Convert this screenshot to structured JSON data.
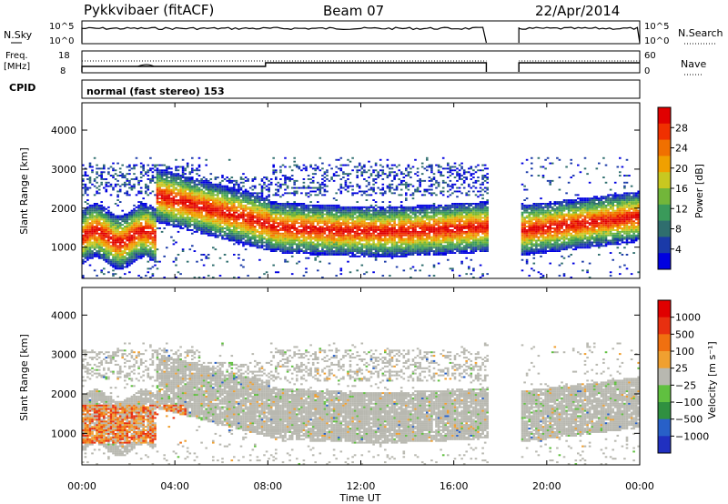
{
  "header": {
    "title": "Pykkvibaer (fitACF)",
    "beam": "Beam 07",
    "date": "22/Apr/2014"
  },
  "strip1": {
    "left_label": "N.Sky",
    "right_label": "N.Search",
    "left_ticks": [
      "10^5",
      "10^0"
    ],
    "right_ticks": [
      "10^5",
      "10^0"
    ]
  },
  "strip2": {
    "left_label_line1": "Freq.",
    "left_label_line2": "[MHz]",
    "right_label": "Nave",
    "left_ticks": [
      "18",
      "8"
    ],
    "right_ticks": [
      "60",
      "0"
    ]
  },
  "cpid": {
    "label": "CPID",
    "value": "normal (fast stereo) 153"
  },
  "chart_data": [
    {
      "type": "heatmap",
      "name": "power",
      "ylabel": "Slant Range [km]",
      "ylim": [
        200,
        4700
      ],
      "yticks": [
        "4000",
        "3000",
        "2000",
        "1000"
      ],
      "xlim": [
        "00:00",
        "24:00"
      ],
      "colorbar_label": "Power [dB]",
      "colorbar_ticks": [
        "28",
        "24",
        "20",
        "16",
        "12",
        "8",
        "4"
      ],
      "colors": [
        "#0000e0",
        "#1a3aa8",
        "#2f6e6e",
        "#3a9a5a",
        "#72b63a",
        "#c8c820",
        "#f0a000",
        "#f07000",
        "#f03000",
        "#e00000"
      ]
    },
    {
      "type": "heatmap",
      "name": "velocity",
      "ylabel": "Slant Range [km]",
      "ylim": [
        200,
        4700
      ],
      "yticks": [
        "4000",
        "3000",
        "2000",
        "1000"
      ],
      "xlim": [
        "00:00",
        "24:00"
      ],
      "colorbar_label": "Velocity [m s⁻¹]",
      "colorbar_ticks": [
        "1000",
        "500",
        "100",
        "25",
        "−25",
        "−100",
        "−500",
        "−1000"
      ],
      "colors": [
        "#2030c0",
        "#2860c8",
        "#309040",
        "#60c040",
        "#b8b8b0",
        "#f0a030",
        "#f07010",
        "#e83010",
        "#e00000"
      ]
    }
  ],
  "xaxis": {
    "ticks": [
      "00:00",
      "04:00",
      "08:00",
      "12:00",
      "16:00",
      "20:00",
      "00:00"
    ],
    "label": "Time UT"
  }
}
